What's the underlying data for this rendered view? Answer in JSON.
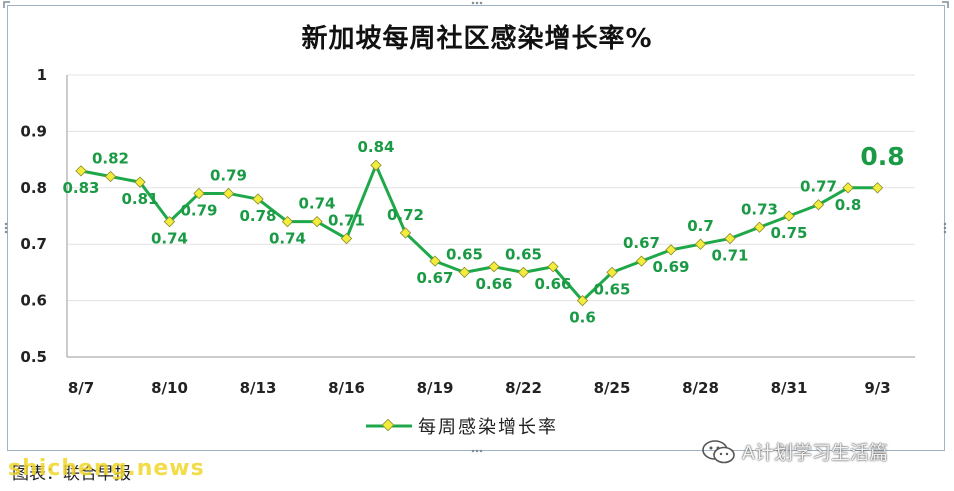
{
  "title": "新加坡每周社区感染增长率%",
  "legend_label": "每周感染增长率",
  "source_text": "图表：联合早报",
  "watermark_site": "shicheng.news",
  "watermark_wechat": "A计划学习生活篇",
  "colors": {
    "line": "#1fa84a",
    "marker": "#f2ec3c",
    "marker_edge": "#8a8a2a",
    "label": "#1a9a44",
    "grid": "#e3e3e3",
    "axis": "#9a9a9a"
  },
  "chart_data": {
    "type": "line",
    "title": "新加坡每周社区感染增长率%",
    "ylim": [
      0.5,
      1
    ],
    "yticks": [
      "0.5",
      "0.6",
      "0.7",
      "0.8",
      "0.9",
      "1"
    ],
    "xtick_labels": [
      "8/7",
      "8/10",
      "8/13",
      "8/16",
      "8/19",
      "8/22",
      "8/25",
      "8/28",
      "8/31",
      "9/3"
    ],
    "x": [
      "8/7",
      "8/8",
      "8/9",
      "8/10",
      "8/11",
      "8/12",
      "8/13",
      "8/14",
      "8/15",
      "8/16",
      "8/17",
      "8/18",
      "8/19",
      "8/20",
      "8/21",
      "8/22",
      "8/23",
      "8/24",
      "8/25",
      "8/26",
      "8/27",
      "8/28",
      "8/29",
      "8/30",
      "8/31",
      "9/1",
      "9/2",
      "9/3"
    ],
    "series": [
      {
        "name": "每周感染增长率",
        "values": [
          0.83,
          0.82,
          0.81,
          0.74,
          0.79,
          0.79,
          0.78,
          0.74,
          0.74,
          0.71,
          0.84,
          0.72,
          0.67,
          0.65,
          0.66,
          0.65,
          0.66,
          0.6,
          0.65,
          0.67,
          0.69,
          0.7,
          0.71,
          0.73,
          0.75,
          0.77,
          0.8,
          0.8
        ],
        "data_labels": [
          "0.83",
          "0.82",
          "0.81",
          "0.74",
          "0.79",
          "0.79",
          "0.78",
          "0.74",
          "0.74",
          "0.71",
          "0.84",
          "0.72",
          "0.67",
          "0.65",
          "0.66",
          "0.65",
          "0.66",
          "0.6",
          "0.65",
          "0.67",
          "0.69",
          "0.7",
          "0.71",
          "0.73",
          "0.75",
          "0.77",
          "0.8",
          "0.8"
        ]
      }
    ],
    "grid": true,
    "legend_position": "bottom"
  }
}
